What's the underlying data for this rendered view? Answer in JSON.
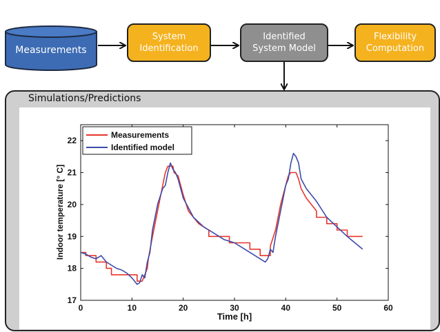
{
  "flow": {
    "measurements": "Measurements",
    "system_identification": [
      "System",
      "Identification"
    ],
    "identified_system_model": [
      "Identified",
      "System Model"
    ],
    "flexibility_computation": [
      "Flexibility",
      "Computation"
    ]
  },
  "panel": {
    "title": "Simulations/Predictions"
  },
  "colors": {
    "measurements_node": "#3d6cb4",
    "process_node": "#f5b21f",
    "model_node": "#8f8f8f",
    "panel_bg": "#cfcfcf",
    "series_measurements": "#e8342b",
    "series_model": "#3b4aa8"
  },
  "chart_data": {
    "type": "line",
    "title": "",
    "xlabel": "Time [h]",
    "ylabel": "Indoor temperature [° C]",
    "xlim": [
      0,
      60
    ],
    "ylim": [
      17,
      22.5
    ],
    "xticks": [
      "0",
      "10",
      "20",
      "30",
      "40",
      "50",
      "60"
    ],
    "yticks": [
      "17",
      "18",
      "19",
      "20",
      "21",
      "22"
    ],
    "xtick_values": [
      0,
      10,
      20,
      30,
      40,
      50,
      60
    ],
    "ytick_values": [
      17,
      18,
      19,
      20,
      21,
      22
    ],
    "grid": false,
    "legend": "top-left",
    "series": [
      {
        "name": "Measurements",
        "color": "#e8342b",
        "points": [
          [
            0,
            18.5
          ],
          [
            1,
            18.5
          ],
          [
            1,
            18.4
          ],
          [
            3,
            18.4
          ],
          [
            3,
            18.2
          ],
          [
            5,
            18.2
          ],
          [
            5,
            18.0
          ],
          [
            6,
            18.0
          ],
          [
            6,
            17.8
          ],
          [
            8,
            17.8
          ],
          [
            8,
            17.8
          ],
          [
            11,
            17.8
          ],
          [
            11,
            17.6
          ],
          [
            11.5,
            17.6
          ],
          [
            12,
            17.6
          ],
          [
            12.5,
            17.8
          ],
          [
            13,
            18.0
          ],
          [
            13.2,
            18.3
          ],
          [
            14,
            19.0
          ],
          [
            15,
            19.8
          ],
          [
            16,
            20.6
          ],
          [
            16.5,
            21.0
          ],
          [
            17,
            21.2
          ],
          [
            18,
            21.2
          ],
          [
            18.2,
            21.0
          ],
          [
            19,
            20.9
          ],
          [
            20,
            20.3
          ],
          [
            21,
            19.8
          ],
          [
            22,
            19.6
          ],
          [
            23,
            19.4
          ],
          [
            24,
            19.3
          ],
          [
            25,
            19.2
          ],
          [
            25,
            19.0
          ],
          [
            27,
            19.0
          ],
          [
            27,
            19.0
          ],
          [
            29,
            19.0
          ],
          [
            29,
            18.8
          ],
          [
            31,
            18.8
          ],
          [
            31,
            18.8
          ],
          [
            33,
            18.8
          ],
          [
            33,
            18.6
          ],
          [
            35,
            18.6
          ],
          [
            35,
            18.4
          ],
          [
            37,
            18.4
          ],
          [
            37,
            18.7
          ],
          [
            38,
            19.2
          ],
          [
            39,
            20.0
          ],
          [
            40,
            20.6
          ],
          [
            40.5,
            20.9
          ],
          [
            41,
            21.0
          ],
          [
            42,
            21.0
          ],
          [
            42.5,
            20.8
          ],
          [
            43,
            20.5
          ],
          [
            44,
            20.2
          ],
          [
            45,
            20.0
          ],
          [
            46,
            19.8
          ],
          [
            46,
            19.6
          ],
          [
            48,
            19.6
          ],
          [
            48,
            19.4
          ],
          [
            50,
            19.4
          ],
          [
            50,
            19.2
          ],
          [
            52,
            19.2
          ],
          [
            52,
            19.0
          ],
          [
            55,
            19.0
          ]
        ]
      },
      {
        "name": "Identified model",
        "color": "#3b4aa8",
        "points": [
          [
            0,
            18.5
          ],
          [
            1,
            18.45
          ],
          [
            2,
            18.35
          ],
          [
            3,
            18.3
          ],
          [
            4,
            18.4
          ],
          [
            5,
            18.2
          ],
          [
            6,
            18.1
          ],
          [
            7,
            18.0
          ],
          [
            8,
            17.95
          ],
          [
            9,
            17.85
          ],
          [
            10,
            17.7
          ],
          [
            11,
            17.5
          ],
          [
            11.5,
            17.55
          ],
          [
            12,
            17.8
          ],
          [
            12.5,
            17.7
          ],
          [
            13,
            18.2
          ],
          [
            13.5,
            18.5
          ],
          [
            14,
            19.2
          ],
          [
            15,
            20.0
          ],
          [
            16,
            20.5
          ],
          [
            16.5,
            20.6
          ],
          [
            17,
            21.0
          ],
          [
            17.5,
            21.3
          ],
          [
            18,
            21.1
          ],
          [
            18.5,
            21.0
          ],
          [
            19,
            20.8
          ],
          [
            20,
            20.2
          ],
          [
            21,
            19.9
          ],
          [
            22,
            19.6
          ],
          [
            24,
            19.3
          ],
          [
            26,
            19.1
          ],
          [
            28,
            18.9
          ],
          [
            30,
            18.8
          ],
          [
            32,
            18.6
          ],
          [
            34,
            18.4
          ],
          [
            36,
            18.2
          ],
          [
            36.5,
            18.3
          ],
          [
            37,
            18.6
          ],
          [
            37.5,
            18.5
          ],
          [
            38,
            19.0
          ],
          [
            39,
            19.8
          ],
          [
            40,
            20.6
          ],
          [
            40.5,
            20.8
          ],
          [
            41,
            21.3
          ],
          [
            41.5,
            21.6
          ],
          [
            42,
            21.5
          ],
          [
            42.5,
            21.3
          ],
          [
            43,
            20.8
          ],
          [
            44,
            20.5
          ],
          [
            46,
            20.1
          ],
          [
            48,
            19.6
          ],
          [
            50,
            19.3
          ],
          [
            52,
            19.0
          ],
          [
            55,
            18.6
          ]
        ]
      }
    ]
  }
}
